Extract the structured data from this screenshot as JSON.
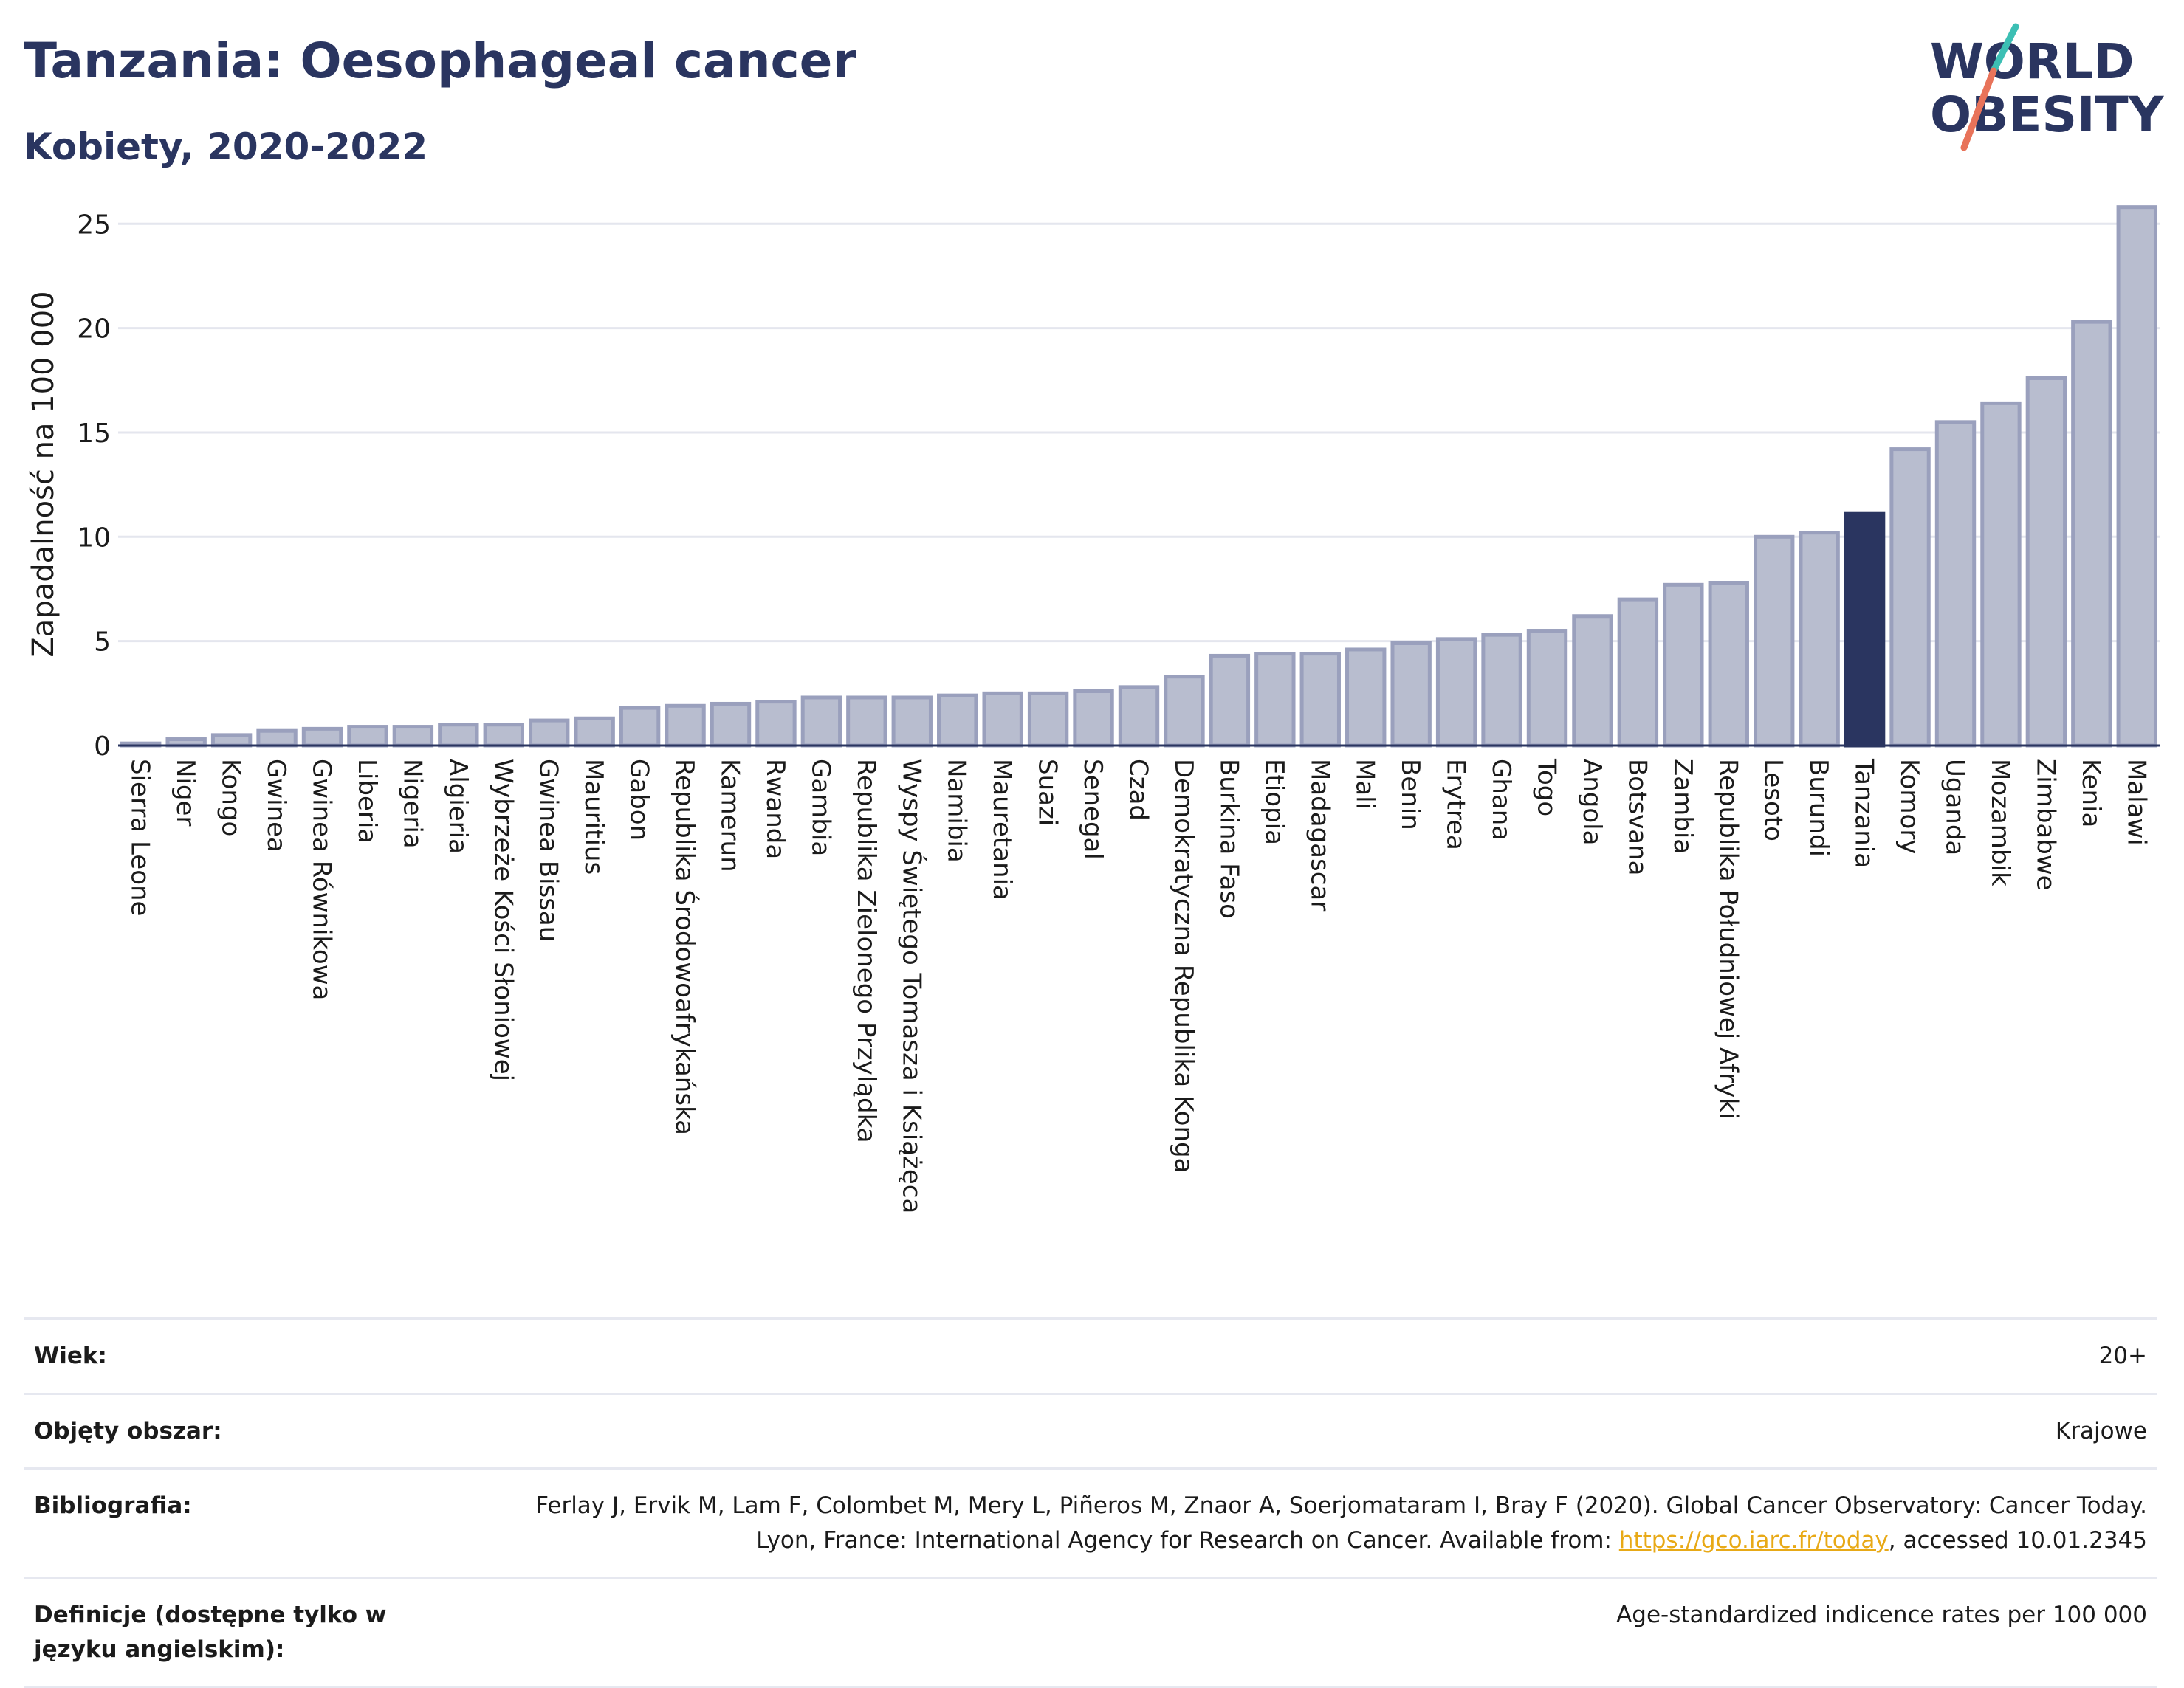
{
  "header": {
    "title": "Tanzania: Oesophageal cancer",
    "subtitle": "Kobiety, 2020-2022"
  },
  "logo": {
    "line1": "WORLD",
    "line2": "OBESITY",
    "text_color": "#2a3560",
    "accent1": "#3cbfb4",
    "accent2": "#e8735a"
  },
  "chart_data": {
    "type": "bar",
    "ylabel": "Zapadalność na 100 000",
    "ylim": [
      0,
      26
    ],
    "yticks": [
      0,
      5,
      10,
      15,
      20,
      25
    ],
    "grid": true,
    "highlight": "Tanzania",
    "colors": {
      "bar": "#b8bdcf",
      "bar_edge": "#9aa0bd",
      "highlight": "#2a3560"
    },
    "categories": [
      "Sierra Leone",
      "Niger",
      "Kongo",
      "Gwinea",
      "Gwinea Równikowa",
      "Liberia",
      "Nigeria",
      "Algieria",
      "Wybrzeże Kości Słoniowej",
      "Gwinea Bissau",
      "Mauritius",
      "Gabon",
      "Republika Środowoafrykańska",
      "Kamerun",
      "Rwanda",
      "Gambia",
      "Republika Zielonego Przylądka",
      "Wyspy Świętego Tomasza i Książęca",
      "Namibia",
      "Mauretania",
      "Suazi",
      "Senegal",
      "Czad",
      "Demokratyczna Republika Konga",
      "Burkina Faso",
      "Etiopia",
      "Madagascar",
      "Mali",
      "Benin",
      "Erytrea",
      "Ghana",
      "Togo",
      "Angola",
      "Botsvana",
      "Zambia",
      "Republika Południowej Afryki",
      "Lesoto",
      "Burundi",
      "Tanzania",
      "Komory",
      "Uganda",
      "Mozambik",
      "Zimbabwe",
      "Kenia",
      "Malawi"
    ],
    "values": [
      0.1,
      0.3,
      0.5,
      0.7,
      0.8,
      0.9,
      0.9,
      1.0,
      1.0,
      1.2,
      1.3,
      1.8,
      1.9,
      2.0,
      2.1,
      2.3,
      2.3,
      2.3,
      2.4,
      2.5,
      2.5,
      2.6,
      2.8,
      3.3,
      4.3,
      4.4,
      4.4,
      4.6,
      4.9,
      5.1,
      5.3,
      5.5,
      6.2,
      7.0,
      7.7,
      7.8,
      10.0,
      10.2,
      11.1,
      14.2,
      15.5,
      16.4,
      17.6,
      20.3,
      25.8
    ]
  },
  "meta": {
    "rows": [
      {
        "key": "Wiek:",
        "value": "20+"
      },
      {
        "key": "Objęty obszar:",
        "value": "Krajowe"
      },
      {
        "key": "Bibliografia:",
        "value_pre": "Ferlay J, Ervik M, Lam F, Colombet M, Mery L, Piñeros M, Znaor A, Soerjomataram I, Bray F (2020). Global Cancer Observatory: Cancer Today. Lyon, France: International Agency for Research on Cancer. Available from: ",
        "link": "https://gco.iarc.fr/today",
        "value_post": ", accessed 10.01.2345"
      },
      {
        "key": "Definicje (dostępne tylko w języku angielskim):",
        "value": "Age-standardized indicence rates per 100 000"
      }
    ]
  }
}
